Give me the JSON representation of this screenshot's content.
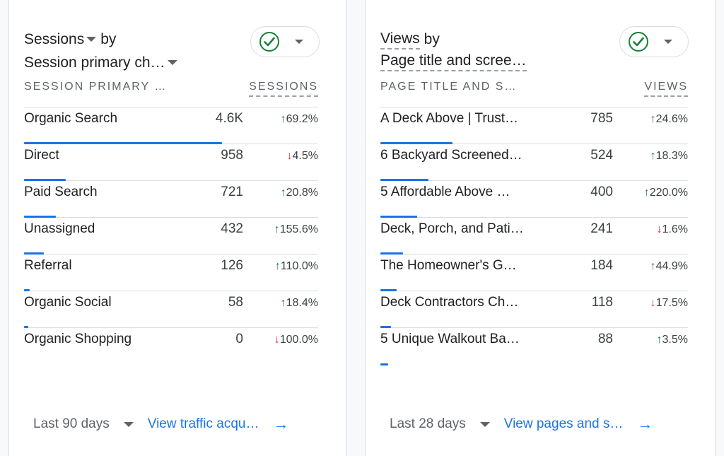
{
  "accent_color": "#1a73e8",
  "up_color": "#188038",
  "down_color": "#d93025",
  "cards": [
    {
      "title_metric": "Sessions",
      "title_by": "by",
      "title_dimension": "Session primary ch…",
      "col_dimension": "SESSION PRIMARY …",
      "col_metric": "SESSIONS",
      "rows": [
        {
          "name": "Organic Search",
          "value": "4.6K",
          "dir": "up",
          "change": "69.2%",
          "bar": 1.0
        },
        {
          "name": "Direct",
          "value": "958",
          "dir": "down",
          "change": "4.5%",
          "bar": 0.21
        },
        {
          "name": "Paid Search",
          "value": "721",
          "dir": "up",
          "change": "20.8%",
          "bar": 0.16
        },
        {
          "name": "Unassigned",
          "value": "432",
          "dir": "up",
          "change": "155.6%",
          "bar": 0.1
        },
        {
          "name": "Referral",
          "value": "126",
          "dir": "up",
          "change": "110.0%",
          "bar": 0.03
        },
        {
          "name": "Organic Social",
          "value": "58",
          "dir": "up",
          "change": "18.4%",
          "bar": 0.013
        },
        {
          "name": "Organic Shopping",
          "value": "0",
          "dir": "down",
          "change": "100.0%",
          "bar": 0
        }
      ],
      "range": "Last 90 days",
      "link": "View traffic acqu…"
    },
    {
      "title_metric": "Views",
      "title_by": "by",
      "title_dimension": "Page title and scree…",
      "col_dimension": "PAGE TITLE AND S…",
      "col_metric": "VIEWS",
      "rows": [
        {
          "name": "A Deck Above | Trust…",
          "value": "785",
          "dir": "up",
          "change": "24.6%",
          "bar": 1.0
        },
        {
          "name": "6 Backyard Screened…",
          "value": "524",
          "dir": "up",
          "change": "18.3%",
          "bar": 0.67
        },
        {
          "name": "5 Affordable Above …",
          "value": "400",
          "dir": "up",
          "change": "220.0%",
          "bar": 0.51
        },
        {
          "name": "Deck, Porch, and Pati…",
          "value": "241",
          "dir": "down",
          "change": "1.6%",
          "bar": 0.31
        },
        {
          "name": "The Homeowner's G…",
          "value": "184",
          "dir": "up",
          "change": "44.9%",
          "bar": 0.23
        },
        {
          "name": "Deck Contractors Ch…",
          "value": "118",
          "dir": "down",
          "change": "17.5%",
          "bar": 0.15
        },
        {
          "name": "5 Unique Walkout Ba…",
          "value": "88",
          "dir": "up",
          "change": "3.5%",
          "bar": 0.11
        }
      ],
      "range": "Last 28 days",
      "link": "View pages and s…"
    }
  ]
}
